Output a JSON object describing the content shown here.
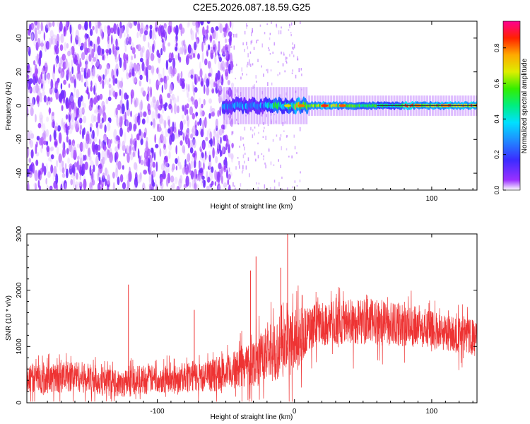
{
  "title": "C2E5.2026.087.18.59.G25",
  "chart_data": [
    {
      "type": "heatmap",
      "title": "C2E5.2026.087.18.59.G25",
      "xlabel": "Height of straight line (km)",
      "ylabel": "Frequency (Hz)",
      "xlim": [
        -195,
        133
      ],
      "ylim": [
        -50,
        50
      ],
      "xticks": [
        -100,
        0,
        100
      ],
      "xtick_labels": [
        "-100",
        "0",
        "100"
      ],
      "yticks": [
        -40,
        -20,
        0,
        20,
        40
      ],
      "ytick_labels": [
        "-40",
        "-20",
        "0",
        "20",
        "40"
      ],
      "colorbar": {
        "label": "Normalized spectral amplitude",
        "range": [
          0.0,
          0.95
        ],
        "ticks": [
          0.0,
          0.2,
          0.4,
          0.6,
          0.8
        ],
        "tick_labels": [
          "0.0",
          "0.2",
          "0.4",
          "0.6",
          "0.8"
        ],
        "colormap": "rainbow (purple-blue-cyan-green-yellow-red-magenta)"
      },
      "features": {
        "noise_region_x": [
          -195,
          -45
        ],
        "noise_peak_amplitude": 0.1,
        "signal_band_center_hz": 0,
        "signal_band_halfwidth_hz": 4,
        "signal_start_x": -52,
        "signal_peak_amplitude": 0.85
      }
    },
    {
      "type": "line",
      "xlabel": "Height of straight line (km)",
      "ylabel": "SNR (10 * v/v)",
      "xlim": [
        -195,
        133
      ],
      "ylim": [
        0,
        3000
      ],
      "xticks": [
        -100,
        0,
        100
      ],
      "xtick_labels": [
        "-100",
        "0",
        "100"
      ],
      "yticks": [
        0,
        1000,
        2000,
        3000
      ],
      "ytick_labels": [
        "0",
        "1000",
        "2000",
        "3000"
      ],
      "color": "#ee3333",
      "envelope": {
        "x": [
          -195,
          -180,
          -160,
          -140,
          -125,
          -121,
          -118,
          -110,
          -100,
          -90,
          -80,
          -73,
          -70,
          -60,
          -50,
          -40,
          -33,
          -30,
          -25,
          -15,
          -8,
          -4,
          0,
          10,
          20,
          30,
          40,
          50,
          60,
          70,
          80,
          90,
          100,
          110,
          120,
          133
        ],
        "mean": [
          450,
          420,
          480,
          380,
          320,
          380,
          400,
          420,
          420,
          420,
          450,
          480,
          450,
          480,
          520,
          620,
          700,
          720,
          800,
          900,
          1000,
          1050,
          1100,
          1300,
          1400,
          1420,
          1440,
          1450,
          1430,
          1400,
          1380,
          1350,
          1300,
          1250,
          1200,
          1150
        ],
        "spread": [
          260,
          260,
          280,
          260,
          220,
          300,
          260,
          260,
          240,
          240,
          260,
          280,
          260,
          280,
          300,
          360,
          420,
          440,
          460,
          520,
          560,
          600,
          560,
          420,
          380,
          400,
          420,
          420,
          400,
          400,
          380,
          360,
          340,
          330,
          320,
          320
        ]
      },
      "peaks": [
        {
          "x": -121,
          "y": 2100
        },
        {
          "x": -73,
          "y": 1650
        },
        {
          "x": -32,
          "y": 2350
        },
        {
          "x": -28,
          "y": 2600
        },
        {
          "x": -10,
          "y": 2400
        },
        {
          "x": -5,
          "y": 3000
        }
      ]
    }
  ]
}
